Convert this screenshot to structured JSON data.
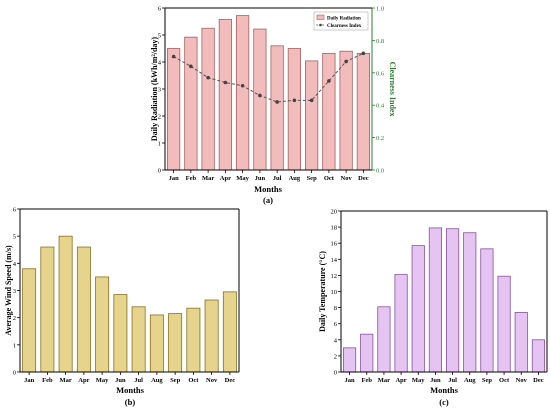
{
  "colors": {
    "radiation_fill": "#f2bcbc",
    "radiation_stroke": "#a86060",
    "clearness_line": "#555555",
    "clearness_axis": "#2e7d32",
    "wind_fill": "#e6d38c",
    "wind_stroke": "#8a7020",
    "temp_fill": "#e5c4f2",
    "temp_stroke": "#8a4fa0"
  },
  "chart_data": [
    {
      "id": "a",
      "type": "bar",
      "panel_label": "(a)",
      "xlabel": "Months",
      "ylabel": "Daily Radiation (kWh/m²/day)",
      "y2label": "Clearness Index",
      "categories": [
        "Jan",
        "Feb",
        "Mar",
        "Apr",
        "May",
        "Jun",
        "Jul",
        "Aug",
        "Sep",
        "Oct",
        "Nov",
        "Dec"
      ],
      "ylim": [
        0,
        6
      ],
      "yticks": [
        "0",
        "1",
        "2",
        "3",
        "4",
        "5",
        "6"
      ],
      "y2lim": [
        0,
        1.0
      ],
      "y2ticks": [
        "0.0",
        "0.2",
        "0.4",
        "0.6",
        "0.8",
        "1.0"
      ],
      "legend_position": "top-right",
      "series": [
        {
          "name": "Daily Radiation",
          "kind": "bar",
          "values": [
            4.5,
            4.92,
            5.25,
            5.58,
            5.72,
            5.22,
            4.6,
            4.5,
            4.04,
            4.32,
            4.4,
            4.32
          ]
        },
        {
          "name": "Clearness Index",
          "kind": "line",
          "values": [
            0.7,
            0.64,
            0.57,
            0.54,
            0.52,
            0.46,
            0.42,
            0.43,
            0.43,
            0.55,
            0.67,
            0.72
          ]
        }
      ]
    },
    {
      "id": "b",
      "type": "bar",
      "panel_label": "(b)",
      "xlabel": "Months",
      "ylabel": "Average Wind Speed (m/s)",
      "categories": [
        "Jan",
        "Feb",
        "Mar",
        "Apr",
        "May",
        "Jun",
        "Jul",
        "Aug",
        "Sep",
        "Oct",
        "Nov",
        "Dec"
      ],
      "ylim": [
        0,
        6
      ],
      "yticks": [
        "0",
        "1",
        "2",
        "3",
        "4",
        "5",
        "6"
      ],
      "values": [
        3.8,
        4.6,
        5.0,
        4.6,
        3.5,
        2.85,
        2.4,
        2.1,
        2.15,
        2.35,
        2.65,
        2.95
      ]
    },
    {
      "id": "c",
      "type": "bar",
      "panel_label": "(c)",
      "xlabel": "Months",
      "ylabel": "Daily Temperature (°C)",
      "categories": [
        "Jan",
        "Feb",
        "Mar",
        "Apr",
        "May",
        "Jun",
        "Jul",
        "Aug",
        "Sep",
        "Oct",
        "Nov",
        "Dec"
      ],
      "ylim": [
        0,
        20
      ],
      "yticks": [
        "0",
        "2",
        "4",
        "6",
        "8",
        "10",
        "12",
        "14",
        "16",
        "18",
        "20"
      ],
      "values": [
        3.0,
        4.7,
        8.1,
        12.1,
        15.7,
        17.9,
        17.8,
        17.3,
        15.3,
        11.9,
        7.4,
        4.0
      ]
    }
  ]
}
